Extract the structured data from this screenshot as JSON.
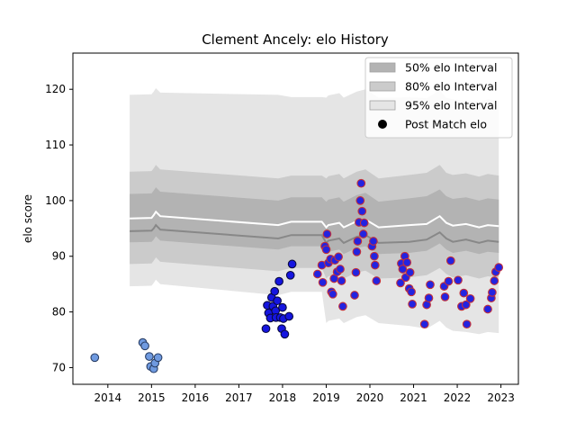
{
  "chart_data": {
    "type": "scatter",
    "title": "Clement Ancely: elo History",
    "xlabel": "",
    "ylabel": "elo score",
    "xlim": [
      2013.2,
      2023.4
    ],
    "ylim": [
      67.0,
      126.5
    ],
    "x_ticks": [
      2014,
      2015,
      2016,
      2017,
      2018,
      2019,
      2020,
      2021,
      2022,
      2023
    ],
    "y_ticks": [
      70,
      80,
      90,
      100,
      110,
      120
    ],
    "legend_position": "top-right",
    "legend": [
      {
        "label": "50% elo Interval",
        "kind": "band",
        "color": "#b3b3b3"
      },
      {
        "label": "80% elo Interval",
        "kind": "band",
        "color": "#cbcbcb"
      },
      {
        "label": "95% elo Interval",
        "kind": "band",
        "color": "#e5e5e5"
      },
      {
        "label": "Post Match elo",
        "kind": "marker",
        "color": "#000000"
      }
    ],
    "bands": {
      "x": [
        2014.5,
        2015.0,
        2015.05,
        2015.1,
        2015.2,
        2017.9,
        2018.2,
        2018.9,
        2019.0,
        2019.05,
        2019.3,
        2019.4,
        2019.7,
        2019.9,
        2020.2,
        2020.9,
        2021.3,
        2021.6,
        2021.75,
        2021.9,
        2022.2,
        2022.5,
        2022.7,
        2022.95
      ],
      "mean": [
        96.8,
        96.9,
        97.4,
        98.0,
        97.2,
        95.6,
        96.2,
        96.2,
        95.2,
        95.6,
        96.0,
        95.2,
        96.3,
        96.6,
        95.2,
        95.6,
        95.8,
        97.2,
        96.0,
        95.5,
        95.8,
        95.2,
        95.6,
        95.4
      ],
      "p50": [
        [
          92.5,
          101.2
        ],
        [
          92.6,
          101.3
        ],
        [
          93.0,
          101.8
        ],
        [
          93.6,
          102.4
        ],
        [
          92.8,
          101.6
        ],
        [
          91.2,
          100.0
        ],
        [
          91.8,
          100.6
        ],
        [
          91.8,
          100.6
        ],
        [
          90.4,
          99.8
        ],
        [
          90.8,
          100.2
        ],
        [
          91.2,
          100.6
        ],
        [
          90.4,
          99.8
        ],
        [
          91.5,
          101.0
        ],
        [
          91.8,
          101.4
        ],
        [
          90.4,
          99.8
        ],
        [
          90.6,
          100.4
        ],
        [
          91.0,
          100.8
        ],
        [
          92.3,
          102.0
        ],
        [
          91.2,
          100.8
        ],
        [
          90.6,
          100.3
        ],
        [
          91.0,
          100.6
        ],
        [
          90.4,
          100.0
        ],
        [
          90.8,
          100.4
        ],
        [
          90.6,
          100.2
        ]
      ],
      "p80": [
        [
          88.6,
          105.2
        ],
        [
          88.7,
          105.3
        ],
        [
          89.2,
          105.8
        ],
        [
          89.8,
          106.4
        ],
        [
          89.0,
          105.6
        ],
        [
          87.3,
          104.0
        ],
        [
          87.9,
          104.5
        ],
        [
          87.9,
          104.5
        ],
        [
          86.0,
          104.0
        ],
        [
          86.4,
          104.4
        ],
        [
          86.8,
          104.8
        ],
        [
          86.0,
          104.0
        ],
        [
          87.1,
          105.2
        ],
        [
          87.4,
          105.6
        ],
        [
          86.0,
          104.0
        ],
        [
          86.2,
          104.6
        ],
        [
          86.6,
          105.0
        ],
        [
          87.9,
          106.4
        ],
        [
          86.8,
          105.0
        ],
        [
          86.2,
          104.6
        ],
        [
          86.6,
          104.9
        ],
        [
          86.0,
          104.3
        ],
        [
          86.4,
          104.8
        ],
        [
          86.2,
          104.5
        ]
      ],
      "p95": [
        [
          84.6,
          119.0
        ],
        [
          84.7,
          119.1
        ],
        [
          85.2,
          119.6
        ],
        [
          85.8,
          120.2
        ],
        [
          85.0,
          119.4
        ],
        [
          83.0,
          119.0
        ],
        [
          83.6,
          118.6
        ],
        [
          83.6,
          118.6
        ],
        [
          78.0,
          118.5
        ],
        [
          78.4,
          118.9
        ],
        [
          78.8,
          119.3
        ],
        [
          78.0,
          118.5
        ],
        [
          79.1,
          119.6
        ],
        [
          79.4,
          120.0
        ],
        [
          78.0,
          118.5
        ],
        [
          77.5,
          118.6
        ],
        [
          77.0,
          118.4
        ],
        [
          78.4,
          119.8
        ],
        [
          77.2,
          118.5
        ],
        [
          76.6,
          118.2
        ],
        [
          76.4,
          118.0
        ],
        [
          76.0,
          117.8
        ],
        [
          76.4,
          118.2
        ],
        [
          76.2,
          118.0
        ]
      ]
    },
    "series": [
      {
        "marker_fill": "#6f9ae0",
        "marker_edge": "#2a3f66",
        "points": [
          [
            2013.7,
            71.8
          ],
          [
            2014.8,
            74.5
          ],
          [
            2014.85,
            73.9
          ],
          [
            2014.95,
            72.0
          ],
          [
            2014.98,
            70.2
          ],
          [
            2015.05,
            69.8
          ],
          [
            2015.08,
            70.8
          ],
          [
            2015.15,
            71.8
          ]
        ]
      },
      {
        "marker_fill": "#1515e0",
        "marker_edge": "#0a0a40",
        "points": [
          [
            2017.62,
            77.0
          ],
          [
            2017.65,
            81.2
          ],
          [
            2017.68,
            79.8
          ],
          [
            2017.72,
            78.9
          ],
          [
            2017.75,
            82.6
          ],
          [
            2017.78,
            81.0
          ],
          [
            2017.82,
            83.7
          ],
          [
            2017.84,
            80.2
          ],
          [
            2017.85,
            79.0
          ],
          [
            2017.88,
            82.0
          ],
          [
            2017.92,
            85.5
          ],
          [
            2017.95,
            79.0
          ],
          [
            2017.98,
            77.0
          ],
          [
            2018.0,
            80.8
          ],
          [
            2018.02,
            78.8
          ],
          [
            2018.05,
            76.0
          ],
          [
            2018.15,
            79.2
          ],
          [
            2018.18,
            86.6
          ],
          [
            2018.22,
            88.6
          ]
        ]
      },
      {
        "marker_fill": "#2323e0",
        "marker_edge": "#c2303a",
        "points": [
          [
            2018.8,
            86.8
          ],
          [
            2018.9,
            88.4
          ],
          [
            2018.92,
            85.3
          ],
          [
            2018.97,
            91.8
          ],
          [
            2019.0,
            91.2
          ],
          [
            2019.02,
            94.0
          ],
          [
            2019.05,
            88.8
          ],
          [
            2019.1,
            89.5
          ],
          [
            2019.12,
            83.6
          ],
          [
            2019.15,
            83.2
          ],
          [
            2019.18,
            86.0
          ],
          [
            2019.2,
            89.3
          ],
          [
            2019.25,
            87.2
          ],
          [
            2019.28,
            89.9
          ],
          [
            2019.32,
            87.7
          ],
          [
            2019.35,
            85.6
          ],
          [
            2019.38,
            81.0
          ],
          [
            2019.65,
            83.0
          ],
          [
            2019.68,
            87.1
          ],
          [
            2019.7,
            90.8
          ],
          [
            2019.72,
            92.7
          ],
          [
            2019.75,
            96.1
          ],
          [
            2019.78,
            100.0
          ],
          [
            2019.8,
            103.1
          ],
          [
            2019.82,
            98.1
          ],
          [
            2019.85,
            94.0
          ],
          [
            2019.87,
            96.0
          ],
          [
            2020.05,
            91.8
          ],
          [
            2020.08,
            92.7
          ],
          [
            2020.1,
            90.0
          ],
          [
            2020.12,
            88.4
          ],
          [
            2020.15,
            85.6
          ],
          [
            2020.7,
            85.2
          ],
          [
            2020.72,
            88.7
          ],
          [
            2020.75,
            87.7
          ],
          [
            2020.8,
            90.0
          ],
          [
            2020.82,
            86.2
          ],
          [
            2020.85,
            88.9
          ],
          [
            2020.9,
            84.2
          ],
          [
            2020.92,
            87.1
          ],
          [
            2020.95,
            83.6
          ],
          [
            2020.97,
            81.4
          ],
          [
            2021.25,
            77.8
          ],
          [
            2021.3,
            81.3
          ],
          [
            2021.35,
            82.5
          ],
          [
            2021.38,
            84.9
          ],
          [
            2021.7,
            84.6
          ],
          [
            2021.72,
            82.7
          ],
          [
            2021.8,
            85.5
          ],
          [
            2021.85,
            89.2
          ],
          [
            2022.02,
            85.7
          ],
          [
            2022.1,
            81.0
          ],
          [
            2022.15,
            83.4
          ],
          [
            2022.2,
            81.3
          ],
          [
            2022.22,
            77.8
          ],
          [
            2022.3,
            82.4
          ],
          [
            2022.7,
            80.5
          ],
          [
            2022.78,
            82.5
          ],
          [
            2022.8,
            83.5
          ],
          [
            2022.85,
            85.6
          ],
          [
            2022.88,
            87.2
          ],
          [
            2022.95,
            88.0
          ]
        ]
      }
    ]
  }
}
